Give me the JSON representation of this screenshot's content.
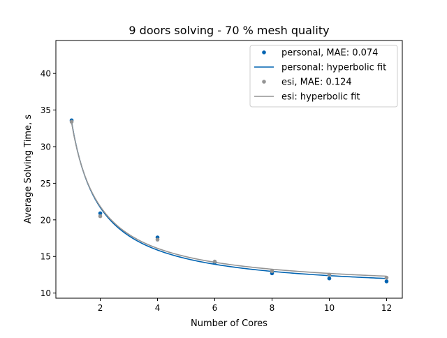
{
  "chart_data": {
    "type": "scatter",
    "title": "9 doors solving - 70 % mesh quality",
    "xlabel": "Number of Cores",
    "ylabel": "Average Solving Time, s",
    "xlim": [
      0.45,
      12.55
    ],
    "ylim": [
      9.3,
      44.5
    ],
    "x_ticks": [
      2,
      4,
      6,
      8,
      10,
      12
    ],
    "y_ticks": [
      10,
      15,
      20,
      25,
      30,
      35,
      40
    ],
    "grid": false,
    "legend_position": "top-right",
    "series": [
      {
        "name": "personal, MAE: 0.074",
        "kind": "points",
        "color": "#0063b1",
        "x": [
          1,
          2,
          4,
          6,
          8,
          10,
          12
        ],
        "y": [
          33.6,
          20.9,
          17.6,
          14.2,
          12.7,
          12.0,
          11.6
        ]
      },
      {
        "name": "personal: hyperbolic fit",
        "kind": "line",
        "color": "#0063b1",
        "a": 23.3,
        "b": 10.05,
        "x_range": [
          1,
          12
        ]
      },
      {
        "name": "esi, MAE: 0.124",
        "kind": "points",
        "color": "#949494",
        "x": [
          1,
          2,
          4,
          6,
          8,
          10,
          12
        ],
        "y": [
          33.4,
          20.5,
          17.3,
          14.3,
          13.0,
          12.5,
          12.1
        ]
      },
      {
        "name": "esi: hyperbolic fit",
        "kind": "line",
        "color": "#949494",
        "a": 22.85,
        "b": 10.4,
        "x_range": [
          1,
          12
        ]
      }
    ]
  }
}
